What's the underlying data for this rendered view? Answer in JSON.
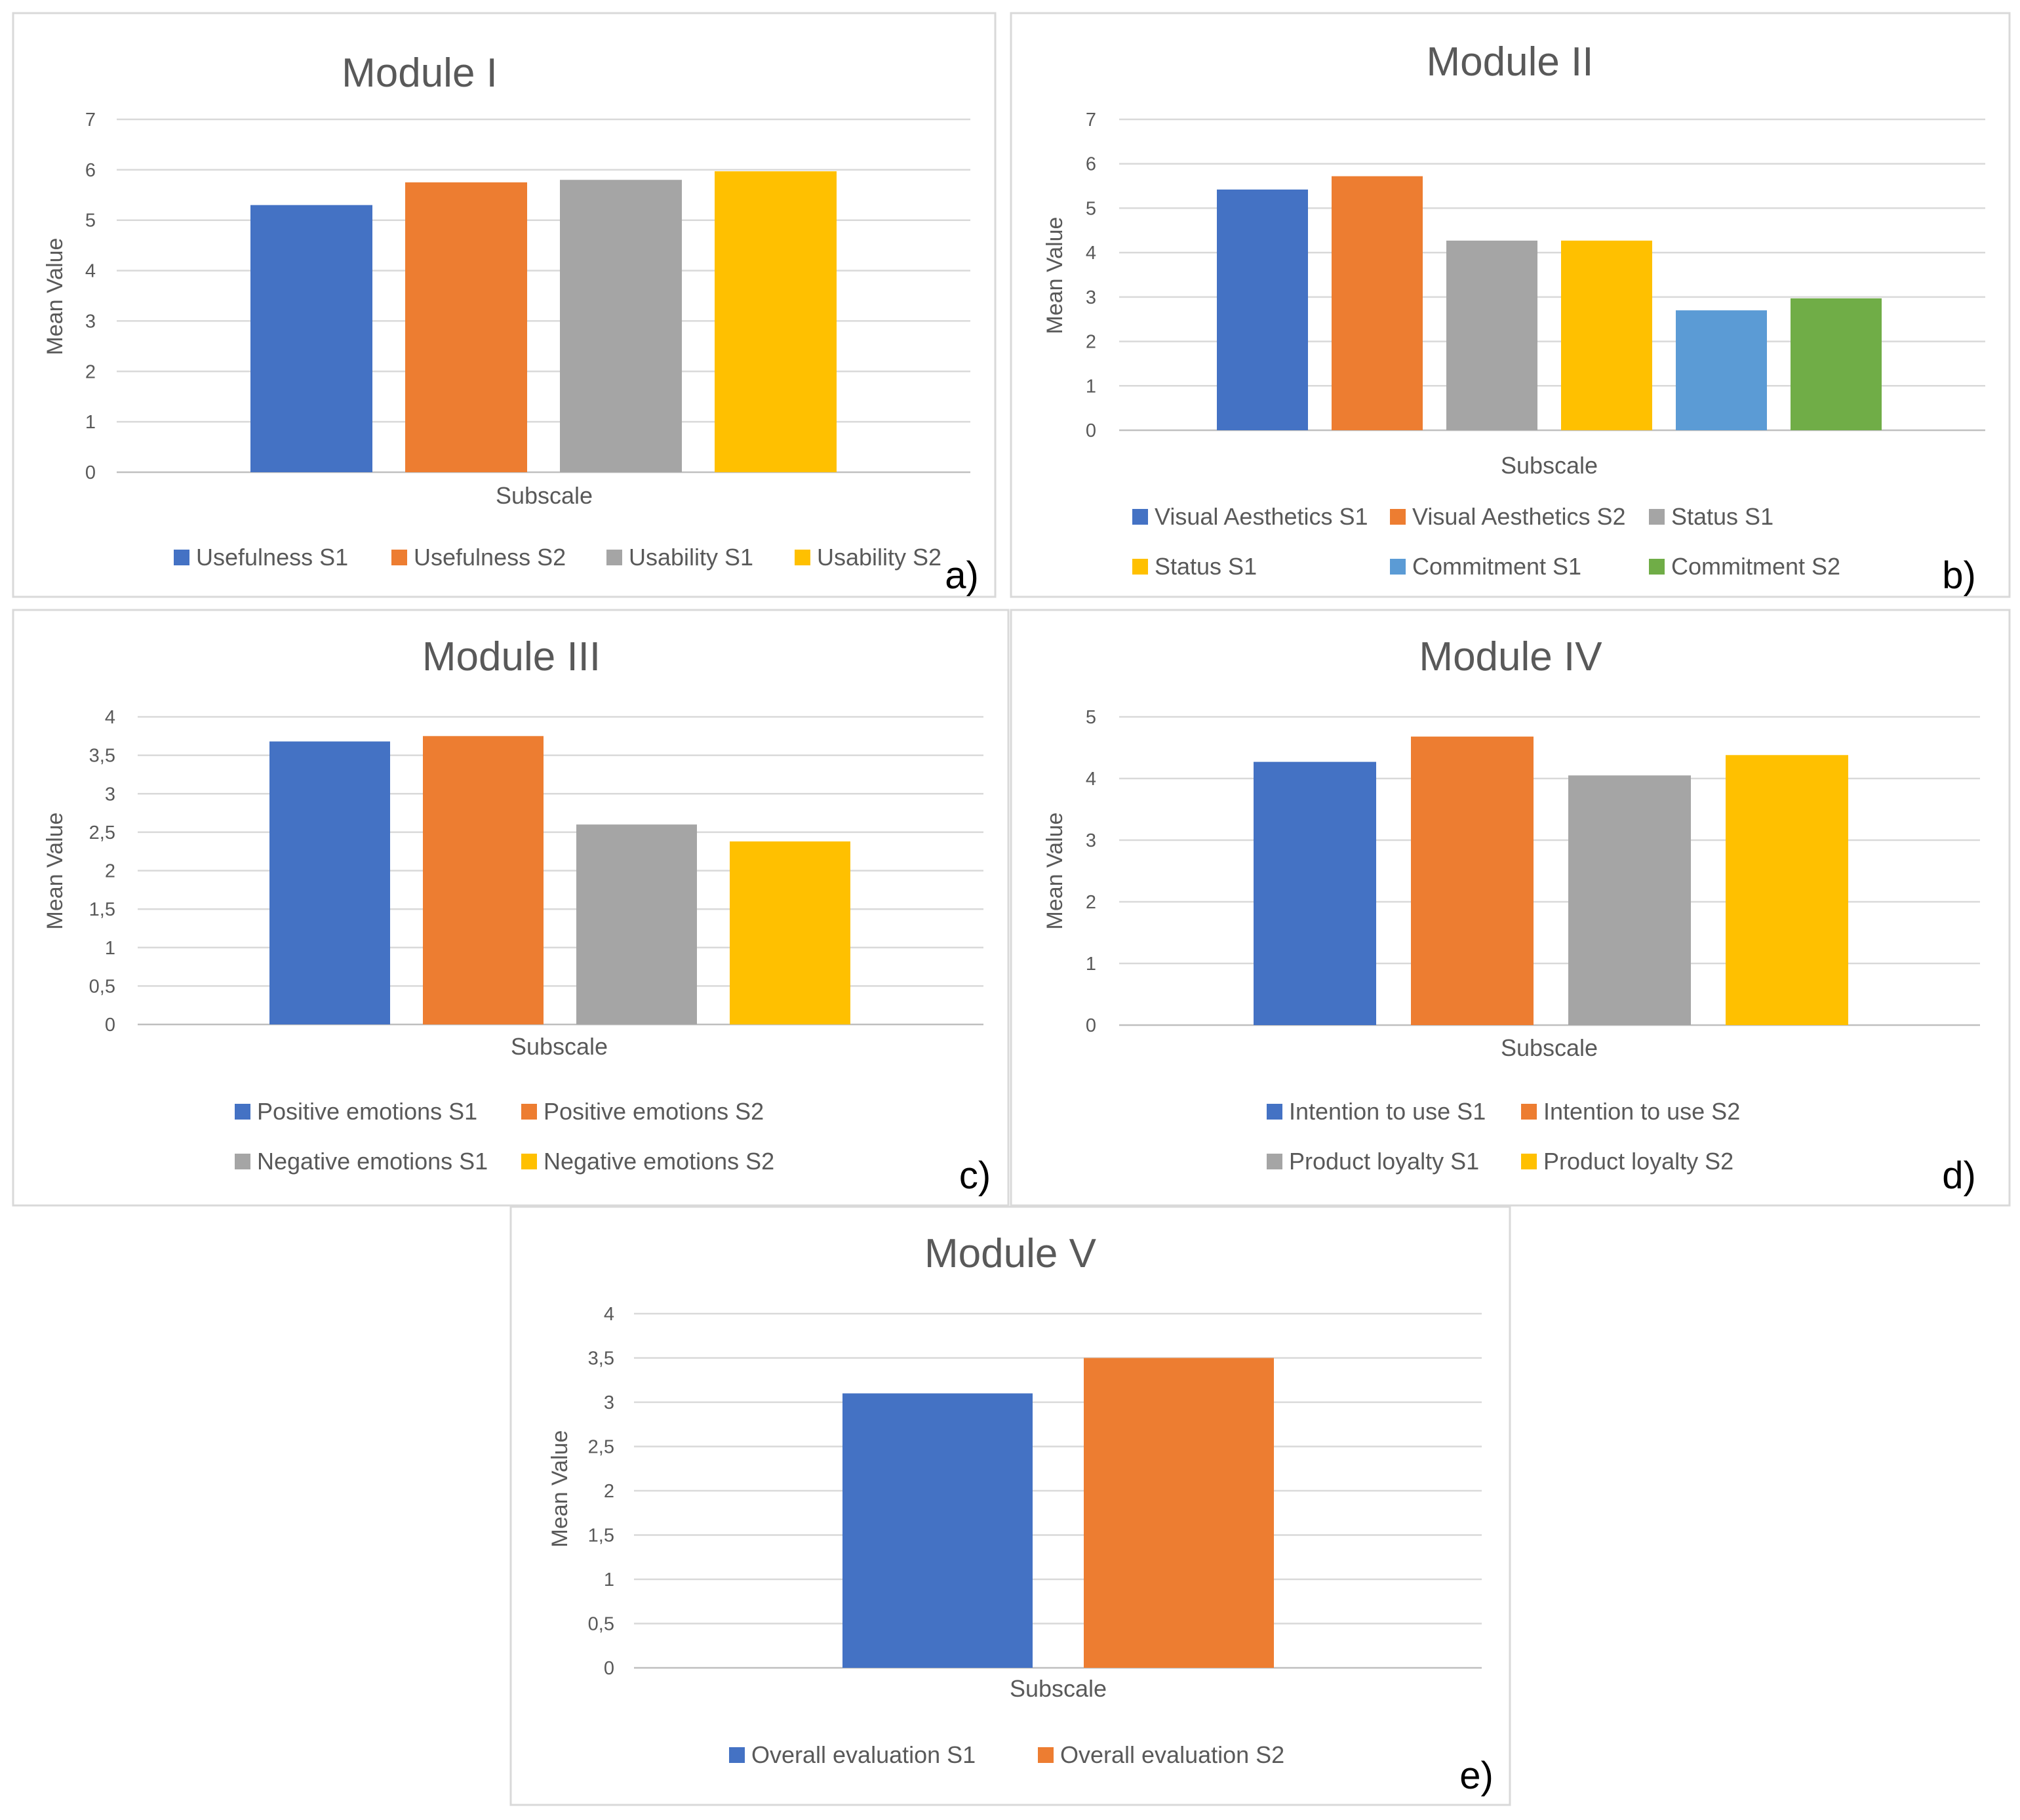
{
  "chart_data": [
    {
      "type": "bar",
      "title": "Module I",
      "panel_label": "a)",
      "xlabel": "Subscale",
      "ylabel": "Mean Value",
      "ylim": [
        0,
        7
      ],
      "yticks": [
        "0",
        "1",
        "2",
        "3",
        "4",
        "5",
        "6",
        "7"
      ],
      "grid": true,
      "legend_position": "bottom",
      "series": [
        {
          "name": "Usefulness S1",
          "value": 5.3,
          "color": "#4472C4"
        },
        {
          "name": "Usefulness S2",
          "value": 5.75,
          "color": "#ED7D31"
        },
        {
          "name": "Usability S1",
          "value": 5.8,
          "color": "#A5A5A5"
        },
        {
          "name": "Usability S2",
          "value": 5.97,
          "color": "#FFC000"
        }
      ]
    },
    {
      "type": "bar",
      "title": "Module II",
      "panel_label": "b)",
      "xlabel": "Subscale",
      "ylabel": "Mean Value",
      "ylim": [
        0,
        7
      ],
      "yticks": [
        "0",
        "1",
        "2",
        "3",
        "4",
        "5",
        "6",
        "7"
      ],
      "grid": true,
      "legend_position": "bottom",
      "series": [
        {
          "name": "Visual Aesthetics S1",
          "value": 5.42,
          "color": "#4472C4"
        },
        {
          "name": "Visual Aesthetics S2",
          "value": 5.72,
          "color": "#ED7D31"
        },
        {
          "name": "Status S1",
          "value": 4.27,
          "color": "#A5A5A5"
        },
        {
          "name": "Status S1",
          "value": 4.27,
          "color": "#FFC000"
        },
        {
          "name": "Commitment S1",
          "value": 2.7,
          "color": "#5B9BD5"
        },
        {
          "name": "Commitment S2",
          "value": 2.97,
          "color": "#70AD47"
        }
      ]
    },
    {
      "type": "bar",
      "title": "Module III",
      "panel_label": "c)",
      "xlabel": "Subscale",
      "ylabel": "Mean Value",
      "ylim": [
        0,
        4
      ],
      "yticks": [
        "0",
        "0,5",
        "1",
        "1,5",
        "2",
        "2,5",
        "3",
        "3,5",
        "4"
      ],
      "grid": true,
      "legend_position": "bottom",
      "series": [
        {
          "name": "Positive emotions S1",
          "value": 3.68,
          "color": "#4472C4"
        },
        {
          "name": "Positive emotions S2",
          "value": 3.75,
          "color": "#ED7D31"
        },
        {
          "name": "Negative emotions S1",
          "value": 2.6,
          "color": "#A5A5A5"
        },
        {
          "name": "Negative emotions S2",
          "value": 2.38,
          "color": "#FFC000"
        }
      ]
    },
    {
      "type": "bar",
      "title": "Module IV",
      "panel_label": "d)",
      "xlabel": "Subscale",
      "ylabel": "Mean Value",
      "ylim": [
        0,
        5
      ],
      "yticks": [
        "0",
        "1",
        "2",
        "3",
        "4",
        "5"
      ],
      "grid": true,
      "legend_position": "bottom",
      "series": [
        {
          "name": "Intention to use S1",
          "value": 4.27,
          "color": "#4472C4"
        },
        {
          "name": "Intention to use  S2",
          "value": 4.68,
          "color": "#ED7D31"
        },
        {
          "name": "Product loyalty  S1",
          "value": 4.05,
          "color": "#A5A5A5"
        },
        {
          "name": "Product loyalty  S2",
          "value": 4.38,
          "color": "#FFC000"
        }
      ]
    },
    {
      "type": "bar",
      "title": "Module V",
      "panel_label": "e)",
      "xlabel": "Subscale",
      "ylabel": "Mean Value",
      "ylim": [
        0,
        4
      ],
      "yticks": [
        "0",
        "0,5",
        "1",
        "1,5",
        "2",
        "2,5",
        "3",
        "3,5",
        "4"
      ],
      "grid": true,
      "legend_position": "bottom",
      "series": [
        {
          "name": "Overall evaluation S1",
          "value": 3.1,
          "color": "#4472C4"
        },
        {
          "name": "Overall evaluation S2",
          "value": 3.5,
          "color": "#ED7D31"
        }
      ]
    }
  ]
}
